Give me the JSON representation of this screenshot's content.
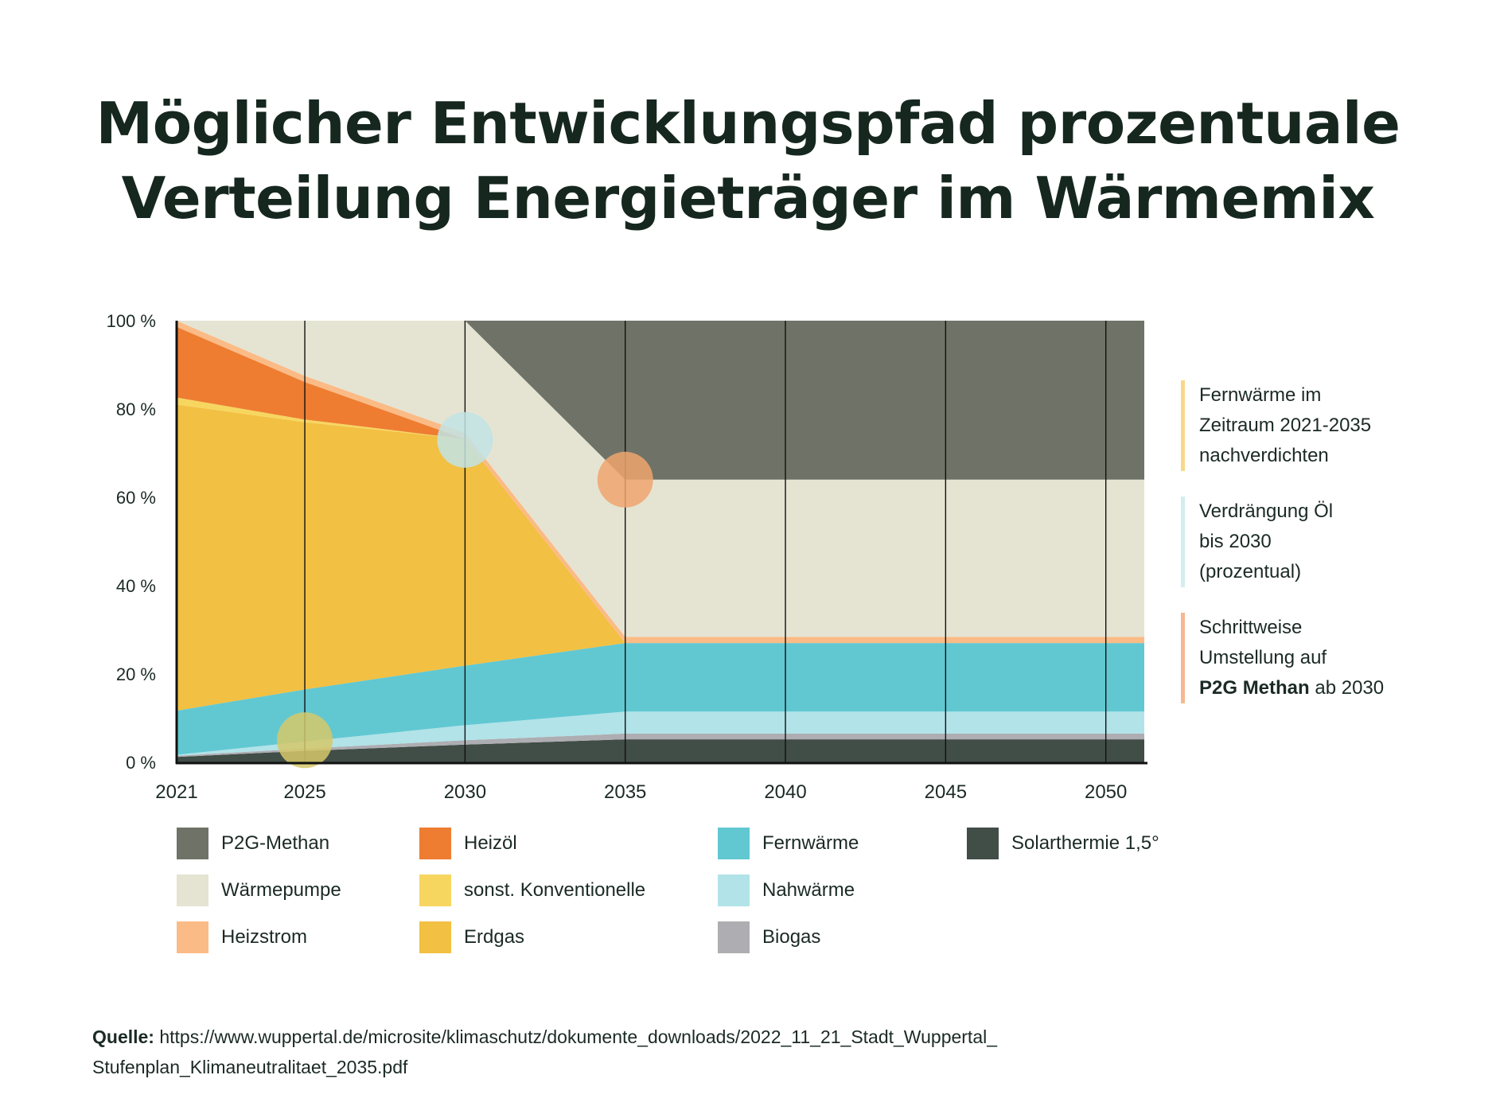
{
  "title_line1": "Möglicher Entwicklungspfad prozentuale",
  "title_line2": "Verteilung Energieträger im Wärmemix",
  "chart_data": {
    "type": "area",
    "stacked": true,
    "x": [
      2021,
      2025,
      2030,
      2035,
      2040,
      2045,
      2050
    ],
    "xticks": [
      "2021",
      "2025",
      "2030",
      "2035",
      "2040",
      "2045",
      "2050"
    ],
    "yticks": [
      "0 %",
      "20 %",
      "40 %",
      "60 %",
      "80 %",
      "100 %"
    ],
    "ylim": [
      0,
      100
    ],
    "series": [
      {
        "name": "Solarthermie 1,5°",
        "color": "#414d47",
        "values": [
          1.2,
          2.6,
          4.0,
          5.2,
          5.2,
          5.2,
          5.2
        ]
      },
      {
        "name": "Biogas",
        "color": "#adadb2",
        "values": [
          0.3,
          0.5,
          1.0,
          1.3,
          1.3,
          1.3,
          1.3
        ]
      },
      {
        "name": "Nahwärme",
        "color": "#b1e3e8",
        "values": [
          0.2,
          1.6,
          3.4,
          5.0,
          5.0,
          5.0,
          5.0
        ]
      },
      {
        "name": "Fernwärme",
        "color": "#61c8d2",
        "values": [
          10.0,
          11.8,
          13.5,
          15.5,
          15.5,
          15.5,
          15.5
        ]
      },
      {
        "name": "Erdgas",
        "color": "#f2c042",
        "values": [
          69.3,
          60.5,
          51.3,
          0.0,
          0.0,
          0.0,
          0.0
        ]
      },
      {
        "name": "sonst. Konventionelle",
        "color": "#f7d660",
        "values": [
          1.6,
          0.6,
          0.0,
          0.0,
          0.0,
          0.0,
          0.0
        ]
      },
      {
        "name": "Heizöl",
        "color": "#ee7d31",
        "values": [
          16.0,
          8.5,
          0.0,
          0.0,
          0.0,
          0.0,
          0.0
        ]
      },
      {
        "name": "Heizstrom",
        "color": "#fbbb86",
        "values": [
          1.4,
          1.4,
          1.4,
          1.4,
          1.4,
          1.4,
          1.4
        ]
      },
      {
        "name": "Wärmepumpe",
        "color": "#e5e4d3",
        "values": [
          0.0,
          12.5,
          25.4,
          35.6,
          35.6,
          35.6,
          35.6
        ]
      },
      {
        "name": "P2G-Methan",
        "color": "#6f7367",
        "values": [
          0.0,
          0.0,
          0.0,
          36.0,
          36.0,
          36.0,
          36.0
        ]
      }
    ],
    "markers": [
      {
        "x": 2025,
        "y": 5,
        "color": "#d6c86a"
      },
      {
        "x": 2030,
        "y": 73,
        "color": "#c2e3e4"
      },
      {
        "x": 2035,
        "y": 64,
        "color": "#f0a56f"
      }
    ]
  },
  "legend": [
    {
      "label": "P2G-Methan",
      "color": "#6f7367"
    },
    {
      "label": "Wärmepumpe",
      "color": "#e5e4d3"
    },
    {
      "label": "Heizstrom",
      "color": "#fbbb86"
    },
    {
      "label": "Heizöl",
      "color": "#ee7d31"
    },
    {
      "label": "sonst. Konventionelle",
      "color": "#f7d660"
    },
    {
      "label": "Erdgas",
      "color": "#f2c042"
    },
    {
      "label": "Fernwärme",
      "color": "#61c8d2"
    },
    {
      "label": "Nahwärme",
      "color": "#b1e3e8"
    },
    {
      "label": "Biogas",
      "color": "#adadb2"
    },
    {
      "label": "Solarthermie 1,5°",
      "color": "#414d47"
    }
  ],
  "annotations": [
    {
      "lines": [
        "Fernwärme im",
        "Zeitraum 2021-2035",
        "nachverdichten"
      ],
      "bold_prefix": "",
      "bold_suffix": "",
      "color": "#f8d88a"
    },
    {
      "lines": [
        "Verdrängung Öl",
        "bis 2030",
        "(prozentual)"
      ],
      "bold_prefix": "",
      "bold_suffix": "",
      "color": "#d3eef0"
    },
    {
      "lines": [
        "Schrittweise",
        "Umstellung auf"
      ],
      "bold_prefix": "P2G Methan",
      "bold_suffix": " ab 2030",
      "color": "#f6b892"
    }
  ],
  "source": {
    "label": "Quelle:",
    "line1": " https://www.wuppertal.de/microsite/klimaschutz/dokumente_downloads/2022_11_21_Stadt_Wuppertal_",
    "line2": "Stufenplan_Klimaneutralitaet_2035.pdf"
  }
}
